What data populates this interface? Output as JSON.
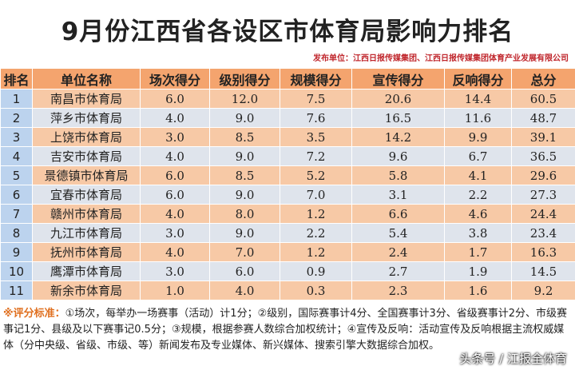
{
  "header": {
    "title": "9月份江西省各设区市体育局影响力排名",
    "publisher": "发布单位：江西日报传媒集团、江西日报传媒集团体育产业发展有限公司"
  },
  "table": {
    "columns": [
      "排名",
      "单位名称",
      "场次得分",
      "级别得分",
      "规模得分",
      "宣传得分",
      "反响得分",
      "总分"
    ],
    "rows": [
      [
        "1",
        "南昌市体育局",
        "6.0",
        "12.0",
        "7.5",
        "20.6",
        "14.4",
        "60.5"
      ],
      [
        "2",
        "萍乡市体育局",
        "4.0",
        "9.0",
        "7.6",
        "16.5",
        "11.6",
        "48.7"
      ],
      [
        "3",
        "上饶市体育局",
        "3.0",
        "8.5",
        "3.5",
        "14.2",
        "9.9",
        "39.1"
      ],
      [
        "4",
        "吉安市体育局",
        "4.0",
        "9.0",
        "7.2",
        "9.6",
        "6.7",
        "36.5"
      ],
      [
        "5",
        "景德镇市体育局",
        "6.0",
        "8.5",
        "5.2",
        "5.8",
        "4.1",
        "29.6"
      ],
      [
        "6",
        "宜春市体育局",
        "6.0",
        "9.0",
        "7.0",
        "3.1",
        "2.2",
        "27.3"
      ],
      [
        "7",
        "赣州市体育局",
        "4.0",
        "8.0",
        "1.2",
        "6.6",
        "4.6",
        "24.4"
      ],
      [
        "8",
        "九江市体育局",
        "3.0",
        "9.0",
        "2.2",
        "5.4",
        "3.8",
        "23.4"
      ],
      [
        "9",
        "抚州市体育局",
        "4.0",
        "7.0",
        "1.2",
        "2.4",
        "1.7",
        "16.3"
      ],
      [
        "10",
        "鹰潭市体育局",
        "3.0",
        "6.0",
        "0.9",
        "2.7",
        "1.9",
        "14.5"
      ],
      [
        "11",
        "新余市体育局",
        "1.0",
        "4.0",
        "0.3",
        "2.3",
        "1.6",
        "9.2"
      ]
    ]
  },
  "footnote": {
    "label": "※评分标准：",
    "text": "①场次，每举办一场赛事（活动）计1分；②级别，国际赛事计4分、全国赛事计3分、省级赛事计2分、市级赛事记1分、县级及以下赛事记0.5分；③规模，根据参赛人数综合加权统计；④宣传及反响：活动宣传及反响根据主流权威媒体（分中央级、省级、市级、等）新闻发布及专业媒体、新兴媒体、搜索引擎大数据综合加权。"
  },
  "watermark": "头条号 / 江报全体育"
}
